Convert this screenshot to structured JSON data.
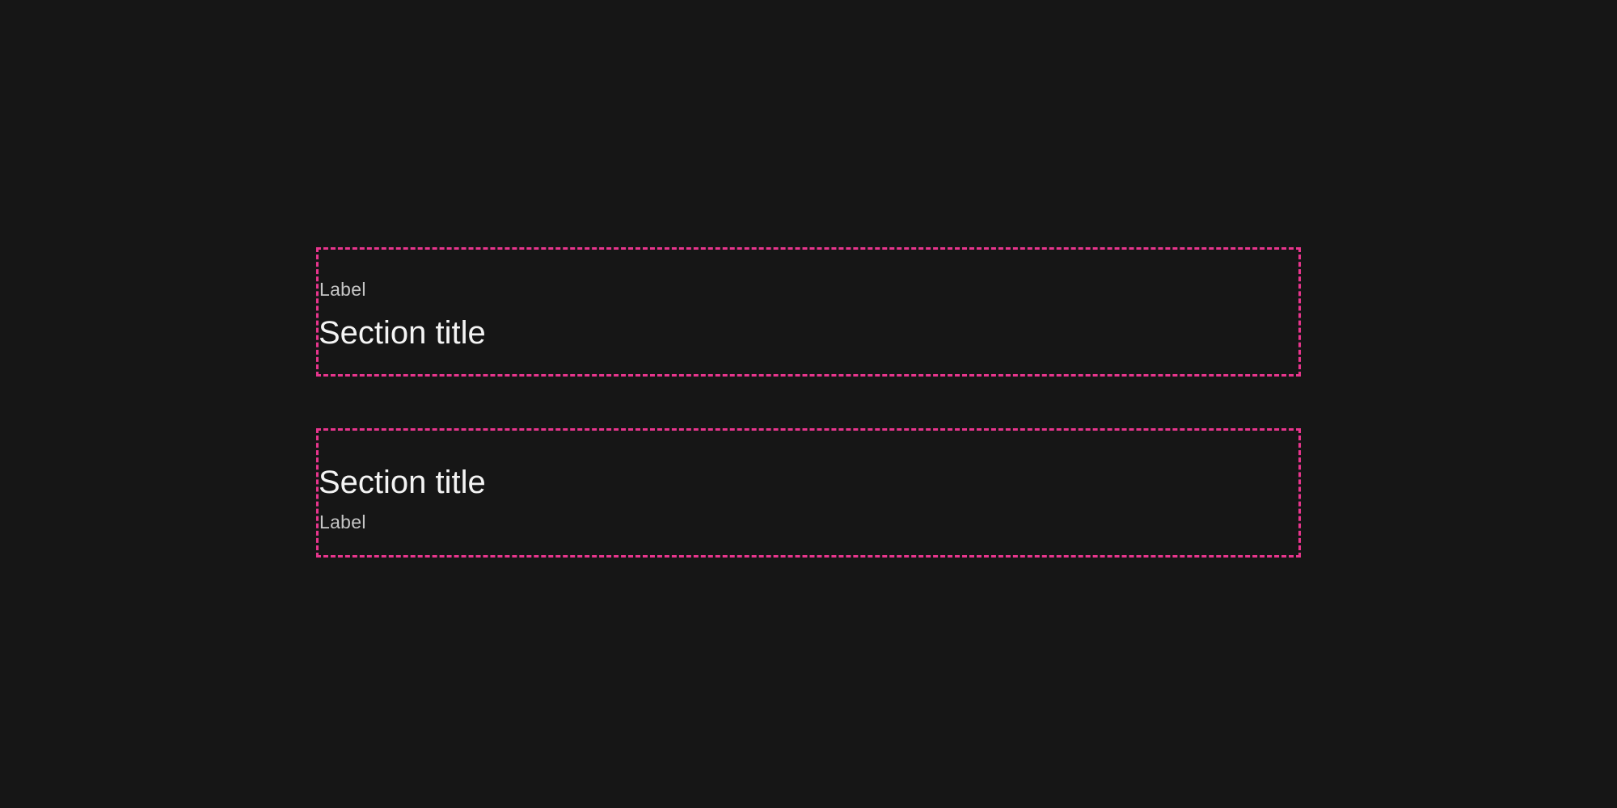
{
  "colors": {
    "background": "#161616",
    "frame_outline": "#e8358d",
    "label_text": "#c6c6c6",
    "title_text": "#f4f4f4"
  },
  "examples": [
    {
      "label": "Label",
      "title": "Section title"
    },
    {
      "title": "Section title",
      "label": "Label"
    }
  ]
}
